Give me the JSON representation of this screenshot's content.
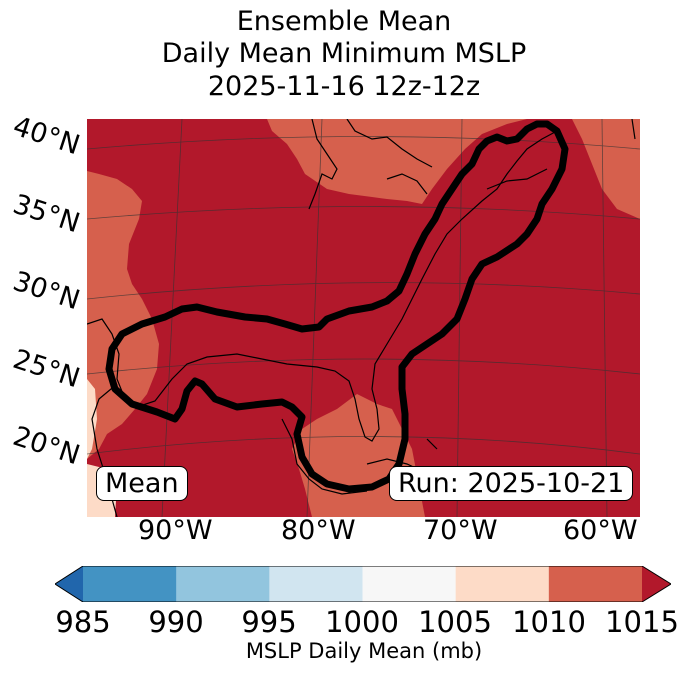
{
  "title": {
    "line1": "Ensemble Mean",
    "line2": "Daily Mean Minimum MSLP",
    "line3": "2025-11-16 12z-12z"
  },
  "map": {
    "lat_labels": [
      "40°N",
      "35°N",
      "30°N",
      "25°N",
      "20°N"
    ],
    "lon_labels": [
      "90°W",
      "80°W",
      "70°W",
      "60°W"
    ],
    "left_box": "Mean",
    "right_box": "Run: 2025-10-21",
    "fill_colors": {
      "above_1015": "#b2182b",
      "1010_1015": "#d6604d",
      "1005_1010": "#fddbc7",
      "ocean_base": "#b2182b"
    }
  },
  "colorbar": {
    "label": "MSLP Daily Mean (mb)",
    "ticks": [
      "985",
      "990",
      "995",
      "1000",
      "1005",
      "1010",
      "1015"
    ],
    "colors": [
      "#2166ac",
      "#4393c3",
      "#92c5de",
      "#d1e5f0",
      "#f7f7f7",
      "#fddbc7",
      "#d6604d",
      "#b2182b"
    ]
  }
}
